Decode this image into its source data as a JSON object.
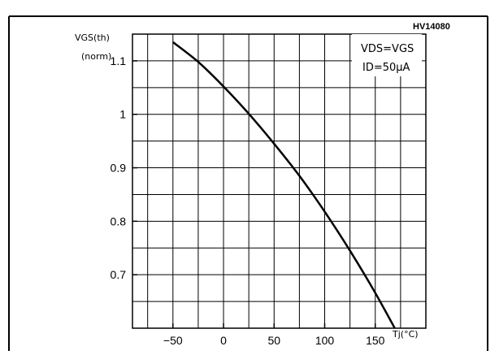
{
  "chart_data": {
    "type": "line",
    "reference_code": "HV14080",
    "ylabel": "VGS(th)",
    "ylabel_sub": "(norm)",
    "xlabel": "Tj(°C)",
    "xlim": [
      -90,
      200
    ],
    "ylim": [
      0.6,
      1.15
    ],
    "x_ticks": [
      -50,
      0,
      50,
      100,
      150
    ],
    "x_tick_labels": [
      "-50",
      "0",
      "50",
      "100",
      "150"
    ],
    "y_ticks": [
      0.7,
      0.8,
      0.9,
      1.0,
      1.1
    ],
    "y_tick_labels": [
      "0.7",
      "0.8",
      "0.9",
      "1",
      "1.1"
    ],
    "grid": true,
    "annotation_lines": [
      "VDS=VGS",
      "ID=50μA"
    ],
    "series": [
      {
        "x": [
          -50,
          -25,
          0,
          25,
          50,
          75,
          100,
          125,
          150,
          175
        ],
        "values": [
          1.135,
          1.098,
          1.052,
          1.001,
          0.945,
          0.885,
          0.818,
          0.745,
          0.666,
          0.58
        ]
      }
    ],
    "colors": {
      "line": "#000000",
      "grid": "#000000",
      "background": "#ffffff"
    }
  }
}
